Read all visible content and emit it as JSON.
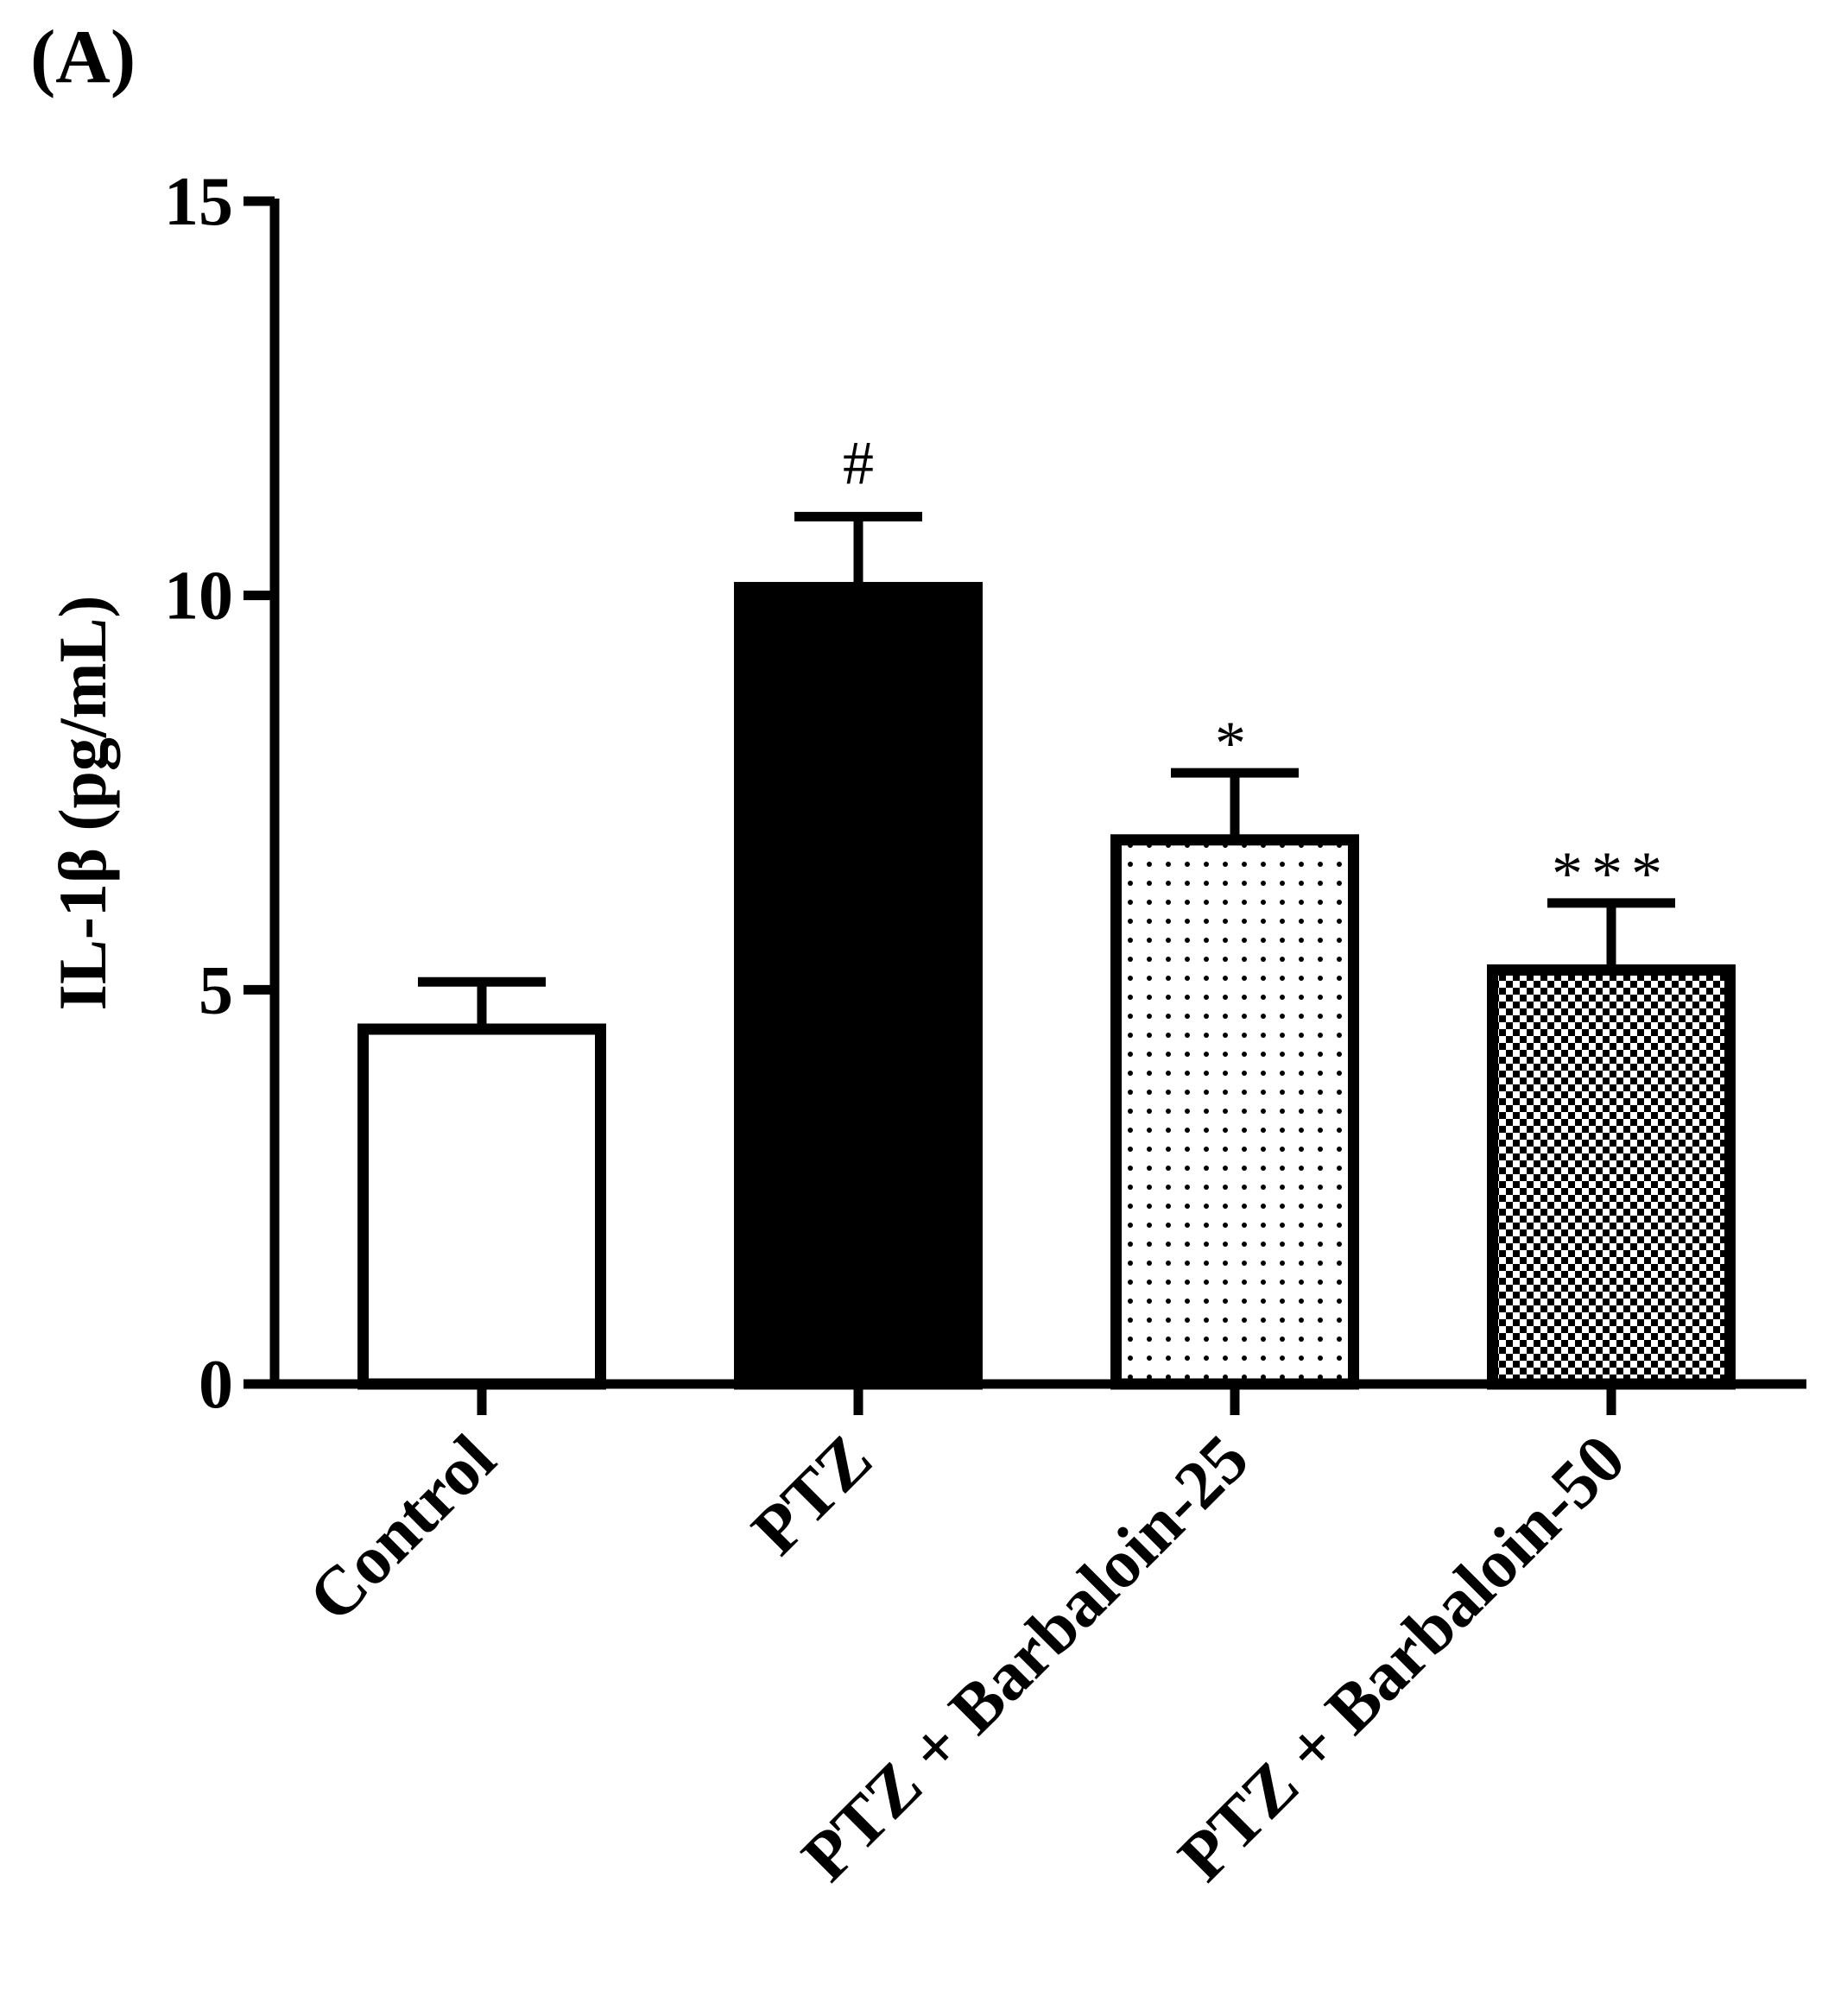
{
  "panel_label": "(A)",
  "chart_data": {
    "type": "bar",
    "ylabel": "IL-1β (pg/mL)",
    "ylim": [
      0,
      15
    ],
    "yticks": [
      0,
      5,
      10,
      15
    ],
    "yticklabels": [
      "0",
      "5",
      "10",
      "15"
    ],
    "categories": [
      "Control",
      "PTZ",
      "PTZ + Barbaloin-25",
      "PTZ + Barbaloin-50"
    ],
    "values": [
      4.5,
      10.1,
      6.9,
      5.25
    ],
    "errors": [
      0.6,
      0.9,
      0.85,
      0.85
    ],
    "annotations": [
      "",
      "#",
      "*",
      "***"
    ],
    "fills": [
      "white",
      "solid-black",
      "sparse-dots",
      "checkerboard"
    ],
    "colors": {
      "stroke": "#000000",
      "fill": "#000000",
      "background": "#ffffff"
    }
  }
}
